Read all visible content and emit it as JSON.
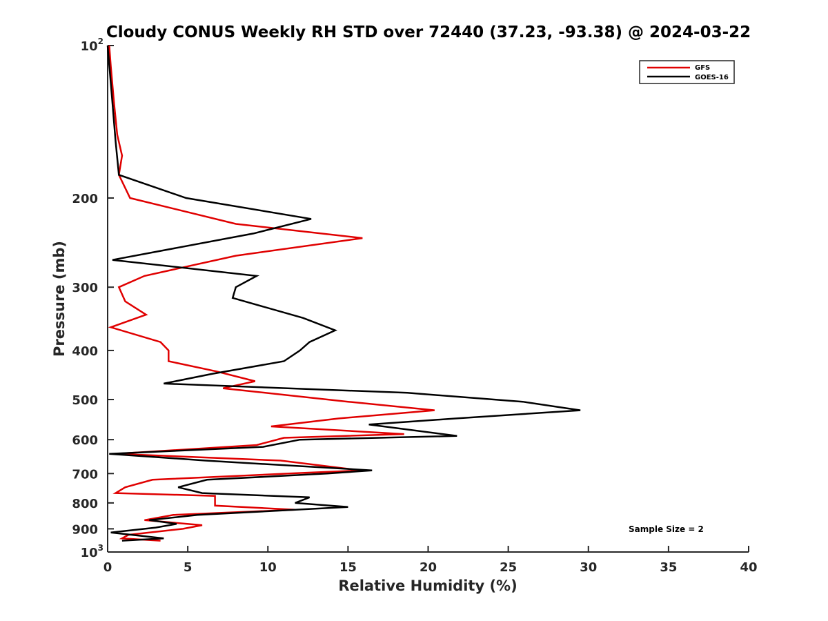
{
  "chart_data": {
    "type": "line",
    "title": "Cloudy CONUS Weekly RH STD over 72440 (37.23, -93.38) @ 2024-03-22",
    "xlabel": "Relative Humidity (%)",
    "ylabel": "Pressure (mb)",
    "xlim": [
      0,
      40
    ],
    "ylim": [
      100,
      1000
    ],
    "y_scale": "log",
    "y_reversed": true,
    "grid": false,
    "legend_position": "top-right",
    "x_ticks": [
      "0",
      "5",
      "10",
      "15",
      "20",
      "25",
      "30",
      "35",
      "40"
    ],
    "y_ticks": [
      {
        "value": 100,
        "label": "10",
        "sup": "2"
      },
      {
        "value": 200,
        "label": "200",
        "sup": ""
      },
      {
        "value": 300,
        "label": "300",
        "sup": ""
      },
      {
        "value": 400,
        "label": "400",
        "sup": ""
      },
      {
        "value": 500,
        "label": "500",
        "sup": ""
      },
      {
        "value": 600,
        "label": "600",
        "sup": ""
      },
      {
        "value": 700,
        "label": "700",
        "sup": ""
      },
      {
        "value": 800,
        "label": "800",
        "sup": ""
      },
      {
        "value": 900,
        "label": "900",
        "sup": ""
      },
      {
        "value": 1000,
        "label": "10",
        "sup": "3"
      }
    ],
    "annotation": "Sample Size = 2",
    "series": [
      {
        "name": "GFS",
        "color": "#e00000",
        "points": [
          [
            0.1,
            100
          ],
          [
            0.2,
            110
          ],
          [
            0.4,
            130
          ],
          [
            0.6,
            150
          ],
          [
            0.9,
            165
          ],
          [
            0.7,
            180
          ],
          [
            1.4,
            200
          ],
          [
            8.0,
            225
          ],
          [
            15.9,
            240
          ],
          [
            8.0,
            260
          ],
          [
            2.3,
            285
          ],
          [
            0.7,
            300
          ],
          [
            1.1,
            320
          ],
          [
            2.4,
            340
          ],
          [
            0.2,
            360
          ],
          [
            3.3,
            385
          ],
          [
            3.8,
            400
          ],
          [
            3.8,
            420
          ],
          [
            6.8,
            440
          ],
          [
            9.2,
            460
          ],
          [
            7.2,
            475
          ],
          [
            15.0,
            505
          ],
          [
            20.4,
            525
          ],
          [
            14.4,
            545
          ],
          [
            10.2,
            565
          ],
          [
            18.5,
            585
          ],
          [
            11.0,
            595
          ],
          [
            9.3,
            615
          ],
          [
            0.5,
            640
          ],
          [
            10.8,
            660
          ],
          [
            15.8,
            690
          ],
          [
            11.3,
            700
          ],
          [
            2.8,
            720
          ],
          [
            1.1,
            745
          ],
          [
            0.5,
            765
          ],
          [
            6.7,
            775
          ],
          [
            6.7,
            810
          ],
          [
            11.7,
            825
          ],
          [
            4.1,
            845
          ],
          [
            2.3,
            865
          ],
          [
            5.9,
            885
          ],
          [
            4.7,
            900
          ],
          [
            1.3,
            925
          ],
          [
            0.9,
            940
          ],
          [
            3.3,
            950
          ]
        ]
      },
      {
        "name": "GOES-16",
        "color": "#000000",
        "points": [
          [
            0.0,
            100
          ],
          [
            0.3,
            130
          ],
          [
            0.5,
            155
          ],
          [
            0.7,
            180
          ],
          [
            4.9,
            200
          ],
          [
            12.7,
            220
          ],
          [
            9.1,
            235
          ],
          [
            0.3,
            265
          ],
          [
            9.3,
            285
          ],
          [
            8.0,
            300
          ],
          [
            7.8,
            315
          ],
          [
            12.2,
            345
          ],
          [
            14.2,
            365
          ],
          [
            12.6,
            385
          ],
          [
            12.0,
            400
          ],
          [
            11.0,
            420
          ],
          [
            6.5,
            445
          ],
          [
            3.5,
            465
          ],
          [
            18.7,
            485
          ],
          [
            25.9,
            505
          ],
          [
            29.5,
            525
          ],
          [
            21.7,
            545
          ],
          [
            16.3,
            560
          ],
          [
            21.8,
            590
          ],
          [
            12.0,
            600
          ],
          [
            9.7,
            620
          ],
          [
            0.1,
            640
          ],
          [
            6.1,
            660
          ],
          [
            16.5,
            690
          ],
          [
            13.7,
            700
          ],
          [
            6.2,
            720
          ],
          [
            4.4,
            745
          ],
          [
            5.9,
            765
          ],
          [
            12.6,
            780
          ],
          [
            11.7,
            800
          ],
          [
            15.0,
            815
          ],
          [
            5.6,
            845
          ],
          [
            2.6,
            865
          ],
          [
            4.3,
            880
          ],
          [
            3.0,
            895
          ],
          [
            0.2,
            915
          ],
          [
            3.5,
            940
          ],
          [
            0.9,
            950
          ]
        ]
      }
    ]
  }
}
